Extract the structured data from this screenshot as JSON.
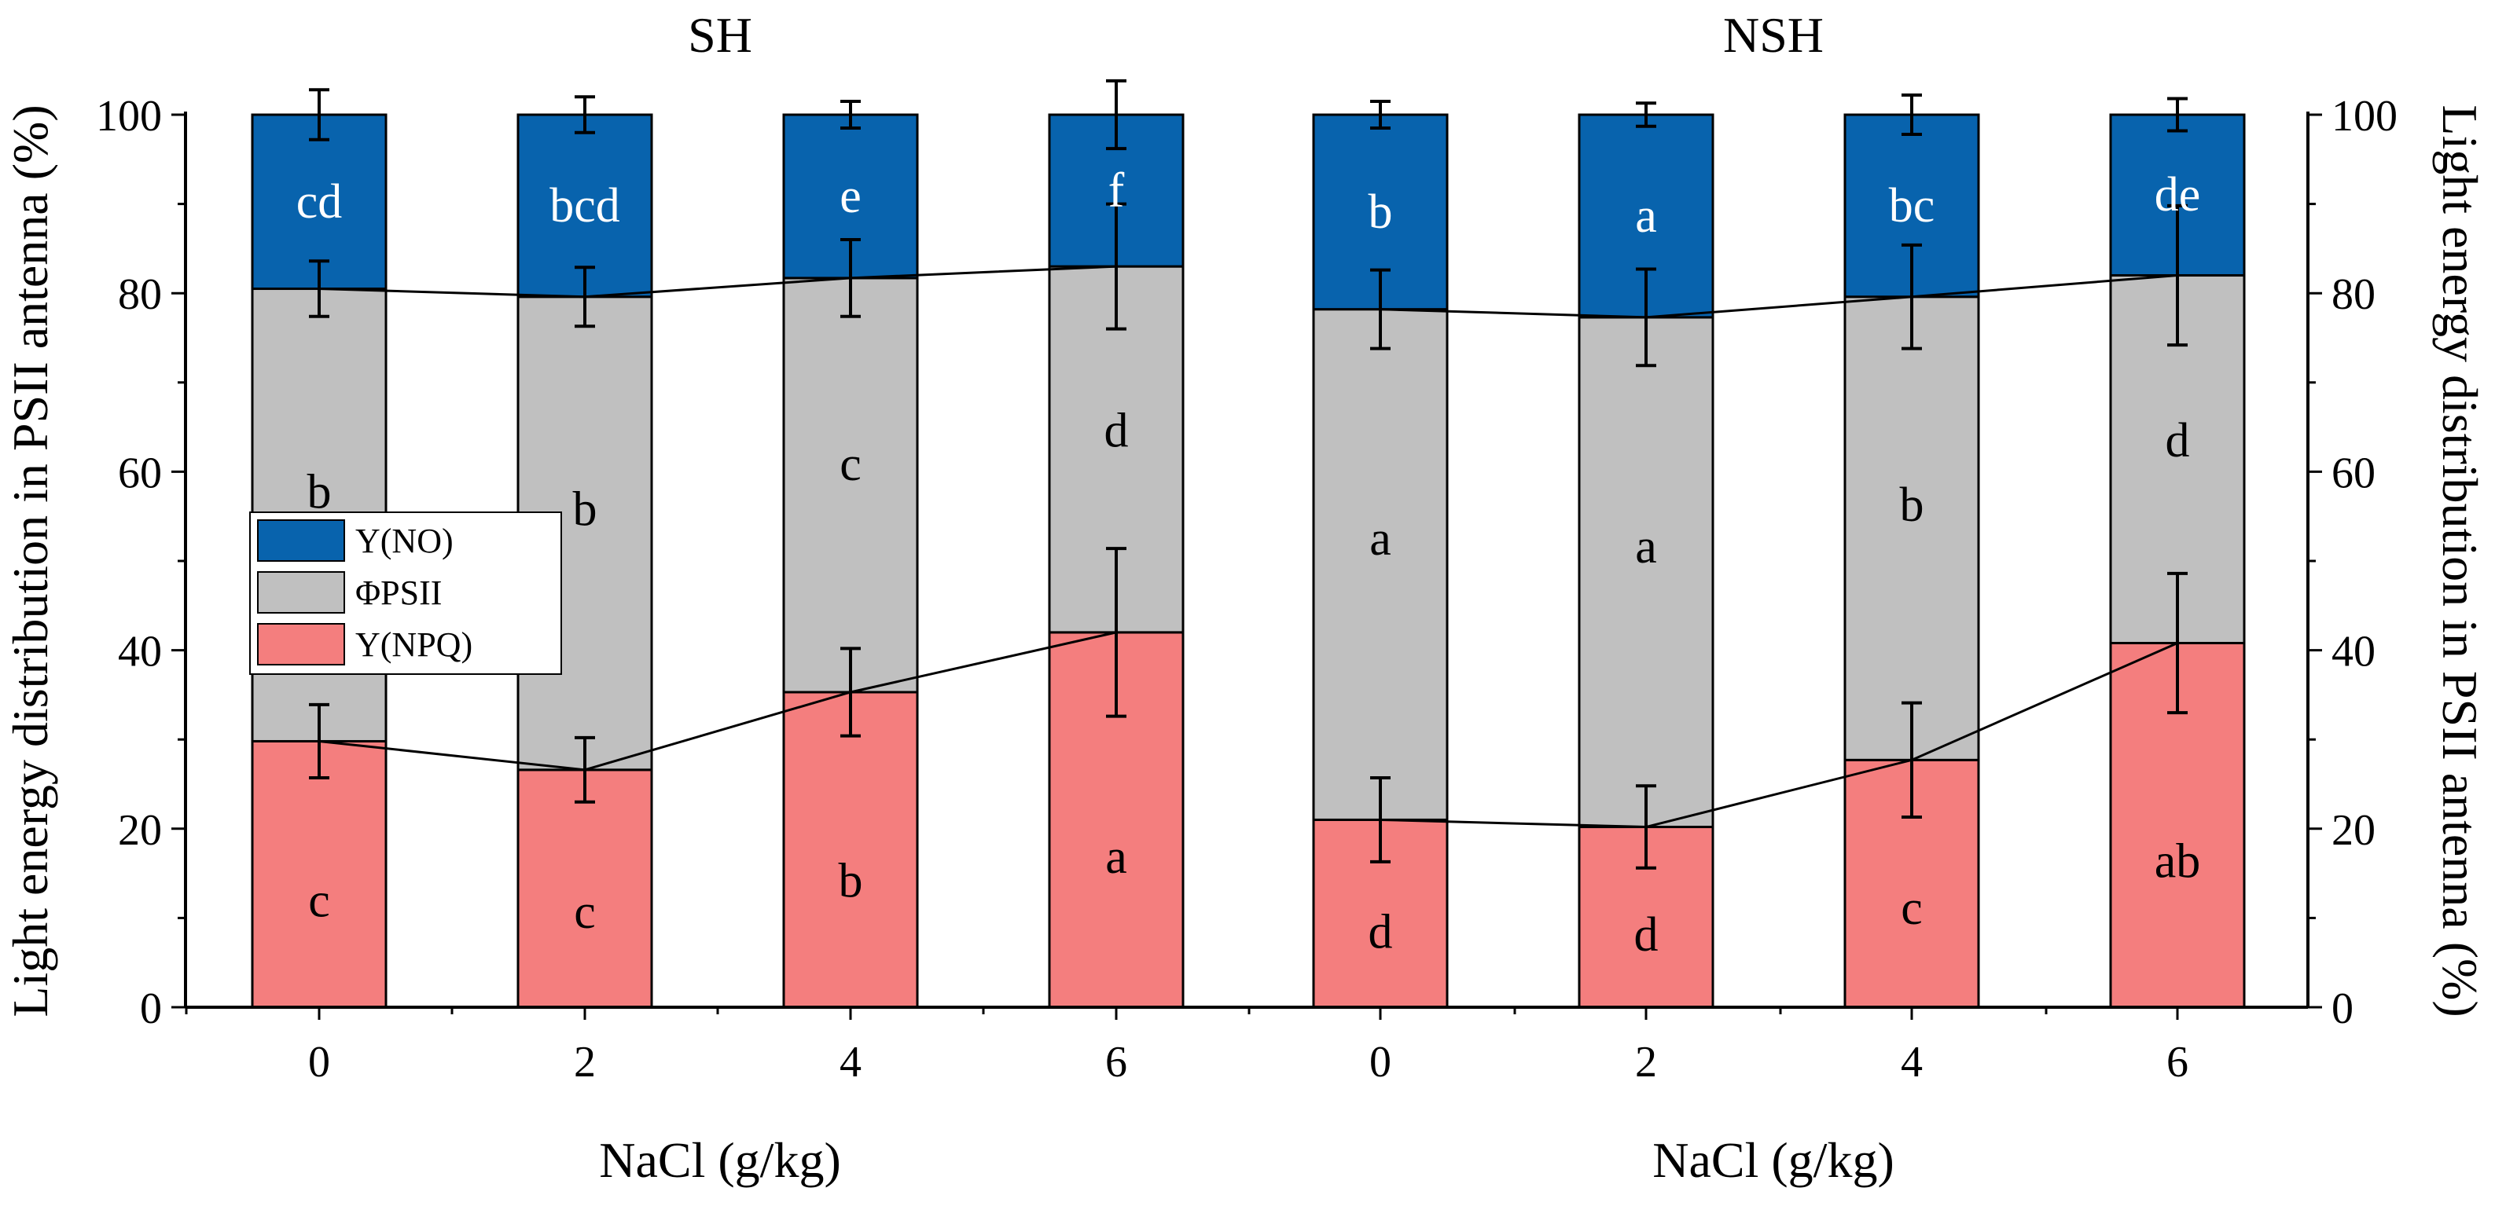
{
  "colors": {
    "y_no": "#0863AD",
    "phi_psii": "#C0C0C0",
    "y_npq": "#F47E7E",
    "axis": "#000000",
    "letter_on_blue": "#FFFFFF",
    "letter_default": "#000000"
  },
  "chart_data": {
    "type": "bar",
    "stacked": true,
    "xlabel": "NaCl (g/kg)",
    "ylabel_left": "Light energy distribution in PSII antenna (%)",
    "ylabel_right": "Light energy distribution in PSII antenna (%)",
    "ylim": [
      0,
      100
    ],
    "yticks": [
      "0",
      "20",
      "40",
      "60",
      "80",
      "100"
    ],
    "legend": {
      "placement": "middle-left",
      "entries": [
        "Y(NO)",
        "ΦPSII",
        "Y(NPQ)"
      ]
    },
    "groups": [
      {
        "title": "SH",
        "categories": [
          "0",
          "2",
          "4",
          "6"
        ],
        "series": [
          {
            "name": "Y(NPQ)",
            "values": [
              29.8,
              26.6,
              35.3,
              42.0
            ],
            "errors": [
              4.1,
              3.6,
              4.9,
              9.4
            ],
            "letters": [
              "c",
              "c",
              "b",
              "a"
            ]
          },
          {
            "name": "ΦPSII",
            "values": [
              50.7,
              53.0,
              46.4,
              41.0
            ],
            "letters": [
              "b",
              "b",
              "c",
              "d"
            ]
          },
          {
            "name": "Y(NO)",
            "values": [
              19.5,
              20.4,
              18.3,
              17.0
            ],
            "tops": [
              80.5,
              79.6,
              81.7,
              83.0
            ],
            "top_errors": [
              3.1,
              3.3,
              4.3,
              7.0
            ],
            "total_errors": [
              2.8,
              2.0,
              1.5,
              3.8
            ],
            "letters": [
              "cd",
              "bcd",
              "e",
              "f"
            ]
          }
        ]
      },
      {
        "title": "NSH",
        "categories": [
          "0",
          "2",
          "4",
          "6"
        ],
        "series": [
          {
            "name": "Y(NPQ)",
            "values": [
              21.0,
              20.2,
              27.7,
              40.8
            ],
            "errors": [
              4.7,
              4.6,
              6.4,
              7.8
            ],
            "letters": [
              "d",
              "d",
              "c",
              "ab"
            ]
          },
          {
            "name": "ΦPSII",
            "values": [
              57.2,
              57.1,
              51.9,
              41.2
            ],
            "letters": [
              "a",
              "a",
              "b",
              "d"
            ]
          },
          {
            "name": "Y(NO)",
            "values": [
              21.8,
              22.7,
              20.4,
              18.0
            ],
            "tops": [
              78.2,
              77.3,
              79.6,
              82.0
            ],
            "top_errors": [
              4.4,
              5.4,
              5.8,
              7.8
            ],
            "total_errors": [
              1.5,
              1.3,
              2.2,
              1.8
            ],
            "letters": [
              "b",
              "a",
              "bc",
              "de"
            ]
          }
        ]
      }
    ]
  }
}
